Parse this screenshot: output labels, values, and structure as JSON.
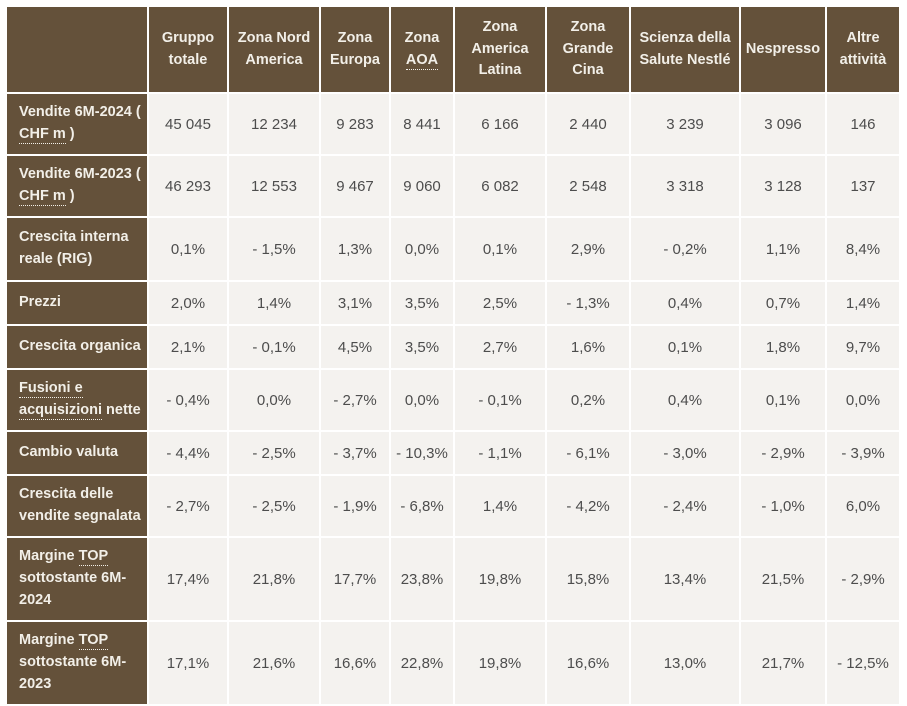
{
  "colors": {
    "header_bg": "#64513a",
    "header_text": "#f2efe8",
    "cell_bg": "#f4f2ef",
    "value_text": "#4d4d4d",
    "gridline": "#ffffff"
  },
  "abbr_terms": [
    "CHF m",
    "AOA",
    "Fusioni e acquisizioni",
    "TOP"
  ],
  "chart_data": {
    "type": "table",
    "columns": [
      "",
      "Gruppo totale",
      "Zona Nord America",
      "Zona Europa",
      "Zona AOA",
      "Zona America Latina",
      "Zona Grande Cina",
      "Scienza della Salute Nestlé",
      "Nespresso",
      "Altre attività"
    ],
    "rows": [
      {
        "label": "Vendite 6M-2024 ( CHF m )",
        "values": [
          "45 045",
          "12 234",
          "9 283",
          "8 441",
          "6 166",
          "2 440",
          "3 239",
          "3 096",
          "146"
        ]
      },
      {
        "label": "Vendite 6M-2023 ( CHF m )",
        "values": [
          "46 293",
          "12 553",
          "9 467",
          "9 060",
          "6 082",
          "2 548",
          "3 318",
          "3 128",
          "137"
        ]
      },
      {
        "label": "Crescita interna reale (RIG)",
        "values": [
          "0,1%",
          "- 1,5%",
          "1,3%",
          "0,0%",
          "0,1%",
          "2,9%",
          "- 0,2%",
          "1,1%",
          "8,4%"
        ]
      },
      {
        "label": "Prezzi",
        "values": [
          "2,0%",
          "1,4%",
          "3,1%",
          "3,5%",
          "2,5%",
          "- 1,3%",
          "0,4%",
          "0,7%",
          "1,4%"
        ]
      },
      {
        "label": "Crescita organica",
        "values": [
          "2,1%",
          "- 0,1%",
          "4,5%",
          "3,5%",
          "2,7%",
          "1,6%",
          "0,1%",
          "1,8%",
          "9,7%"
        ]
      },
      {
        "label": "Fusioni e acquisizioni nette",
        "values": [
          "- 0,4%",
          "0,0%",
          "- 2,7%",
          "0,0%",
          "- 0,1%",
          "0,2%",
          "0,4%",
          "0,1%",
          "0,0%"
        ]
      },
      {
        "label": "Cambio valuta",
        "values": [
          "- 4,4%",
          "- 2,5%",
          "- 3,7%",
          "- 10,3%",
          "- 1,1%",
          "- 6,1%",
          "- 3,0%",
          "- 2,9%",
          "- 3,9%"
        ]
      },
      {
        "label": "Crescita delle vendite segnalata",
        "values": [
          "- 2,7%",
          "- 2,5%",
          "- 1,9%",
          "- 6,8%",
          "1,4%",
          "- 4,2%",
          "- 2,4%",
          "- 1,0%",
          "6,0%"
        ]
      },
      {
        "label": "Margine TOP sottostante 6M-2024",
        "values": [
          "17,4%",
          "21,8%",
          "17,7%",
          "23,8%",
          "19,8%",
          "15,8%",
          "13,4%",
          "21,5%",
          "- 2,9%"
        ]
      },
      {
        "label": "Margine TOP sottostante 6M-2023",
        "values": [
          "17,1%",
          "21,6%",
          "16,6%",
          "22,8%",
          "19,8%",
          "16,6%",
          "13,0%",
          "21,7%",
          "- 12,5%"
        ]
      }
    ]
  }
}
